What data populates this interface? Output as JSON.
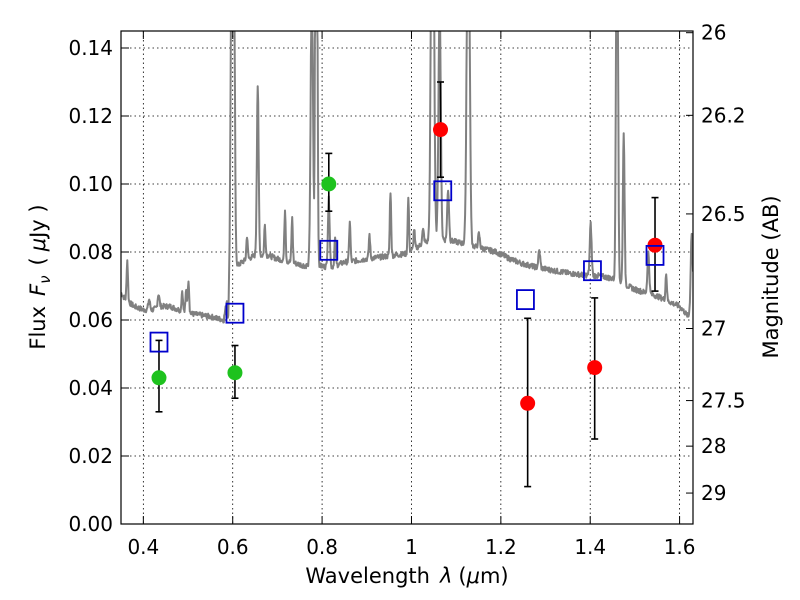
{
  "chart_data": {
    "type": "scatter",
    "xlim": [
      0.35,
      1.63
    ],
    "ylim": [
      0.0,
      0.145
    ],
    "xlabel": {
      "prefix": "Wavelength",
      "symbol": "λ",
      "units_open": "(",
      "units_mu": "μ",
      "units_rest": "m)"
    },
    "ylabel": {
      "prefix": "Flux",
      "symbol": "F",
      "sub": "ν",
      "units_open": "(",
      "units_mu": "μ",
      "units_rest": "Jy )"
    },
    "y2label": "Magnitude (AB)",
    "x_ticks": [
      {
        "v": 0.4,
        "label": "0.4"
      },
      {
        "v": 0.6,
        "label": "0.6"
      },
      {
        "v": 0.8,
        "label": "0.8"
      },
      {
        "v": 1.0,
        "label": "1"
      },
      {
        "v": 1.2,
        "label": "1.2"
      },
      {
        "v": 1.4,
        "label": "1.4"
      },
      {
        "v": 1.6,
        "label": "1.6"
      }
    ],
    "y_ticks": [
      {
        "v": 0.0,
        "label": "0.00"
      },
      {
        "v": 0.02,
        "label": "0.02"
      },
      {
        "v": 0.04,
        "label": "0.04"
      },
      {
        "v": 0.06,
        "label": "0.06"
      },
      {
        "v": 0.08,
        "label": "0.08"
      },
      {
        "v": 0.1,
        "label": "0.10"
      },
      {
        "v": 0.12,
        "label": "0.12"
      },
      {
        "v": 0.14,
        "label": "0.14"
      }
    ],
    "y2_ticks": [
      {
        "label": "26",
        "flux": 0.1445
      },
      {
        "label": "26.2",
        "flux": 0.1202
      },
      {
        "label": "26.5",
        "flux": 0.0912
      },
      {
        "label": "27",
        "flux": 0.0575
      },
      {
        "label": "27.5",
        "flux": 0.0363
      },
      {
        "label": "28",
        "flux": 0.0229
      },
      {
        "label": "29",
        "flux": 0.0091
      }
    ],
    "grid": true,
    "colors": {
      "model": "#808080",
      "green": "#1ec21e",
      "red": "#ff0000",
      "square": "#0000cc",
      "errorbar": "#000000",
      "grid": "#000000"
    },
    "series": [
      {
        "kind": "model_spectrum",
        "color": "#808080"
      },
      {
        "kind": "points",
        "color": "#1ec21e",
        "marker": "circle",
        "points": [
          {
            "x": 0.435,
            "y": 0.043,
            "ylo": 0.033,
            "yhi": 0.054
          },
          {
            "x": 0.605,
            "y": 0.0445,
            "ylo": 0.037,
            "yhi": 0.0525
          },
          {
            "x": 0.815,
            "y": 0.1,
            "ylo": 0.092,
            "yhi": 0.109
          }
        ]
      },
      {
        "kind": "points",
        "color": "#ff0000",
        "marker": "circle",
        "points": [
          {
            "x": 1.065,
            "y": 0.116,
            "ylo": 0.102,
            "yhi": 0.13
          },
          {
            "x": 1.26,
            "y": 0.0355,
            "ylo": 0.011,
            "yhi": 0.0605
          },
          {
            "x": 1.41,
            "y": 0.046,
            "ylo": 0.025,
            "yhi": 0.0665
          },
          {
            "x": 1.545,
            "y": 0.082,
            "ylo": 0.0685,
            "yhi": 0.096
          }
        ]
      },
      {
        "kind": "points",
        "color": "#0000cc",
        "marker": "open-square",
        "points": [
          {
            "x": 0.435,
            "y": 0.0535
          },
          {
            "x": 0.605,
            "y": 0.062
          },
          {
            "x": 0.815,
            "y": 0.0805
          },
          {
            "x": 1.07,
            "y": 0.098
          },
          {
            "x": 1.255,
            "y": 0.066
          },
          {
            "x": 1.405,
            "y": 0.0745
          },
          {
            "x": 1.545,
            "y": 0.079
          }
        ]
      }
    ]
  }
}
